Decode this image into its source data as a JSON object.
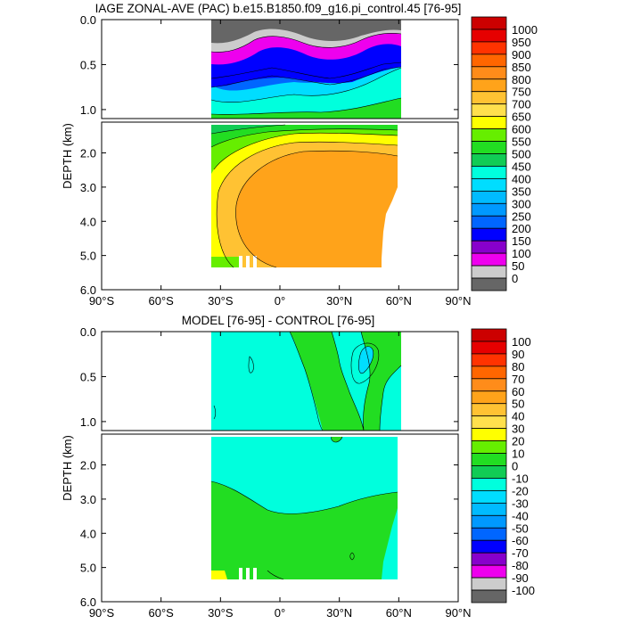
{
  "chart_data": [
    {
      "type": "heatmap",
      "title": "IAGE ZONAL-AVE (PAC) b.e15.B1850.f09_g16.pi_control.45 [76-95]",
      "ylabel": "DEPTH (km)",
      "xlabel": "",
      "xlim": [
        -90,
        90
      ],
      "ylim_upper_km": [
        0.0,
        1.1
      ],
      "ylim_lower_km": [
        1.1,
        6.0
      ],
      "upper_yticks": [
        "0.0",
        "0.5",
        "1.0"
      ],
      "lower_yticks": [
        "2.0",
        "3.0",
        "4.0",
        "5.0",
        "6.0"
      ],
      "xticks": [
        "90°S",
        "60°S",
        "30°S",
        "0°",
        "30°N",
        "60°N",
        "90°N"
      ],
      "data_extent_lat": [
        -34,
        61
      ],
      "colorbar": {
        "labels": [
          "1000",
          "950",
          "900",
          "850",
          "800",
          "750",
          "700",
          "650",
          "600",
          "550",
          "500",
          "450",
          "400",
          "350",
          "300",
          "250",
          "200",
          "150",
          "100",
          "50",
          "0"
        ],
        "colors": [
          "#cc0000",
          "#e60000",
          "#ff3300",
          "#ff6600",
          "#ff8c1a",
          "#ffa31a",
          "#ffc233",
          "#ffe04d",
          "#ffff00",
          "#66ee00",
          "#22dd22",
          "#11cc55",
          "#00ffdd",
          "#00ddff",
          "#00bbff",
          "#0099ff",
          "#0066ff",
          "#0000ff",
          "#8800cc",
          "#ee00ee",
          "#cccccc",
          "#666666"
        ]
      }
    },
    {
      "type": "heatmap",
      "title": "MODEL [76-95] - CONTROL [76-95]",
      "ylabel": "DEPTH (km)",
      "xlabel": "",
      "xlim": [
        -90,
        90
      ],
      "ylim_upper_km": [
        0.0,
        1.1
      ],
      "ylim_lower_km": [
        1.1,
        6.0
      ],
      "upper_yticks": [
        "0.0",
        "0.5",
        "1.0"
      ],
      "lower_yticks": [
        "2.0",
        "3.0",
        "4.0",
        "5.0",
        "6.0"
      ],
      "xticks": [
        "90°S",
        "60°S",
        "30°S",
        "0°",
        "30°N",
        "60°N",
        "90°N"
      ],
      "data_extent_lat": [
        -34,
        61
      ],
      "colorbar": {
        "labels": [
          "100",
          "90",
          "80",
          "70",
          "60",
          "50",
          "40",
          "30",
          "20",
          "10",
          "0",
          "-10",
          "-20",
          "-30",
          "-40",
          "-50",
          "-60",
          "-70",
          "-80",
          "-90",
          "-100"
        ],
        "colors": [
          "#cc0000",
          "#e60000",
          "#ff3300",
          "#ff6600",
          "#ff8c1a",
          "#ffa31a",
          "#ffc233",
          "#ffe04d",
          "#ffff00",
          "#66ee00",
          "#22dd22",
          "#11cc55",
          "#00ffdd",
          "#00ddff",
          "#00bbff",
          "#0099ff",
          "#0066ff",
          "#0000ff",
          "#8800cc",
          "#ee00ee",
          "#cccccc",
          "#666666"
        ]
      }
    }
  ]
}
